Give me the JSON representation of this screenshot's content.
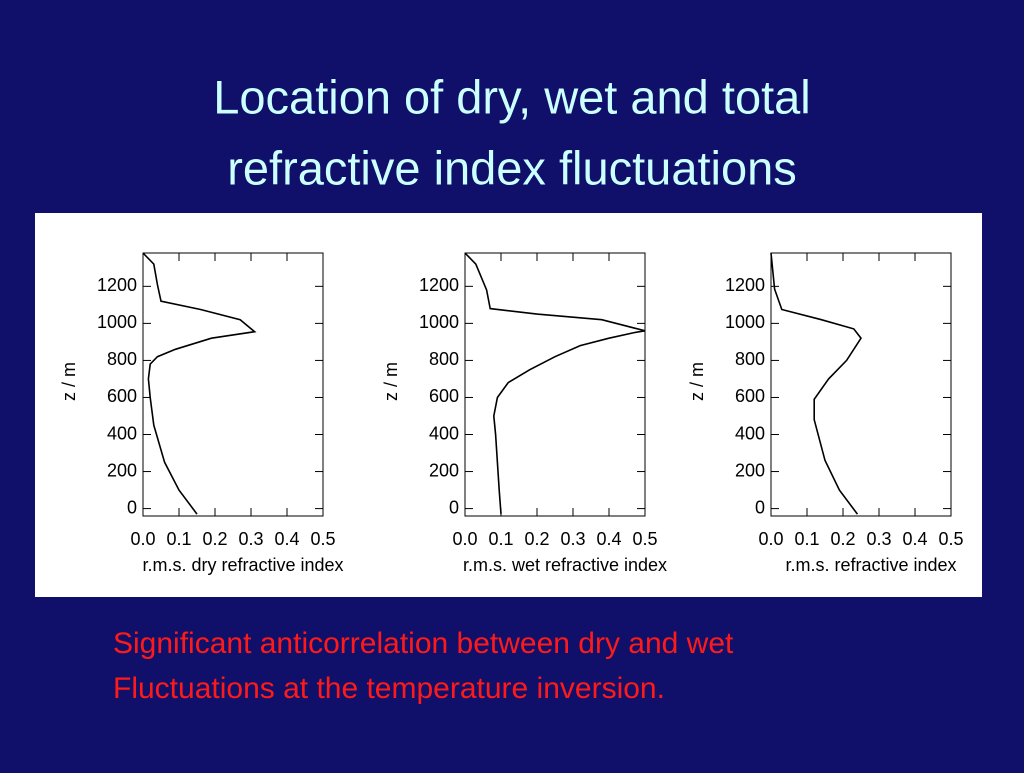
{
  "title": [
    "Location of dry, wet and total",
    "refractive index fluctuations"
  ],
  "chart_data": [
    {
      "type": "line",
      "xlabel": "r.m.s. dry refractive index",
      "ylabel": "z / m",
      "color": "#000000",
      "xlim": [
        0,
        0.5
      ],
      "ylim": [
        -40,
        1380
      ],
      "xticks": [
        {
          "value": 0,
          "label": "0.0"
        },
        0.1,
        0.2,
        0.3,
        0.4,
        0.5
      ],
      "yticks": [
        0,
        200,
        400,
        600,
        800,
        1000,
        1200
      ],
      "x": [
        0.15,
        0.1,
        0.06,
        0.03,
        0.02,
        0.015,
        0.02,
        0.04,
        0.09,
        0.19,
        0.31,
        0.27,
        0.16,
        0.05,
        0.04,
        0.03,
        0.0
      ],
      "values": [
        -30,
        100,
        250,
        450,
        600,
        700,
        780,
        820,
        860,
        920,
        955,
        1020,
        1075,
        1120,
        1210,
        1320,
        1380
      ]
    },
    {
      "type": "line",
      "xlabel": "r.m.s. wet refractive index",
      "ylabel": "z / m",
      "color": "#000000",
      "xlim": [
        0,
        0.5
      ],
      "ylim": [
        -40,
        1380
      ],
      "xticks": [
        {
          "value": 0,
          "label": "0.0"
        },
        0.1,
        0.2,
        0.3,
        0.4,
        0.5
      ],
      "yticks": [
        0,
        200,
        400,
        600,
        800,
        1000,
        1200
      ],
      "x": [
        0.1,
        0.095,
        0.09,
        0.085,
        0.08,
        0.09,
        0.12,
        0.18,
        0.25,
        0.32,
        0.4,
        0.47,
        0.5,
        0.38,
        0.2,
        0.07,
        0.06,
        0.03,
        0.0
      ],
      "values": [
        -30,
        100,
        250,
        400,
        500,
        600,
        680,
        750,
        820,
        880,
        920,
        950,
        960,
        1020,
        1050,
        1080,
        1180,
        1320,
        1380
      ]
    },
    {
      "type": "line",
      "xlabel": "r.m.s. refractive index",
      "ylabel": "z / m",
      "color": "#000000",
      "xlim": [
        0,
        0.5
      ],
      "ylim": [
        -40,
        1380
      ],
      "xticks": [
        {
          "value": 0,
          "label": "0.0"
        },
        0.1,
        0.2,
        0.3,
        0.4,
        0.5
      ],
      "yticks": [
        0,
        200,
        400,
        600,
        800,
        1000,
        1200
      ],
      "x": [
        0.24,
        0.19,
        0.15,
        0.12,
        0.12,
        0.16,
        0.21,
        0.25,
        0.23,
        0.14,
        0.03,
        0.01,
        0.0
      ],
      "values": [
        -30,
        100,
        260,
        480,
        590,
        700,
        800,
        920,
        970,
        1020,
        1075,
        1185,
        1380
      ]
    }
  ],
  "caption": [
    "Significant anticorrelation between dry and wet",
    "Fluctuations at the temperature inversion."
  ]
}
